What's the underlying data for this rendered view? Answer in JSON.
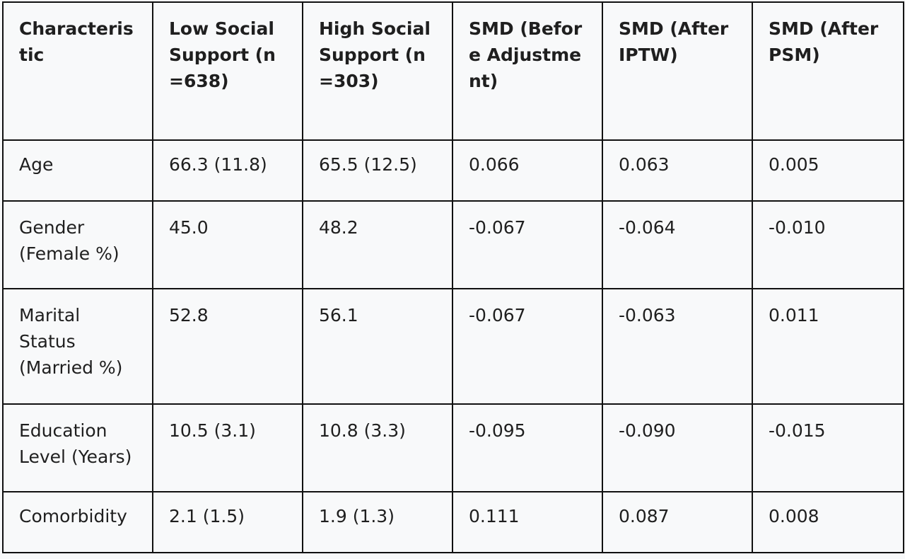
{
  "table": {
    "headers": [
      "Characteristic",
      "Low Social Support (n=638)",
      "High Social Support (n=303)",
      "SMD (Before Adjustment)",
      "SMD (After IPTW)",
      "SMD (After PSM)"
    ],
    "rows": [
      [
        "Age",
        "66.3 (11.8)",
        "65.5 (12.5)",
        "0.066",
        "0.063",
        "0.005"
      ],
      [
        "Gender (Female %)",
        "45.0",
        "48.2",
        "-0.067",
        "-0.064",
        "-0.010"
      ],
      [
        "Marital Status (Married %)",
        "52.8",
        "56.1",
        "-0.067",
        "-0.063",
        "0.011"
      ],
      [
        "Education Level (Years)",
        "10.5 (3.1)",
        "10.8 (3.3)",
        "-0.095",
        "-0.090",
        "-0.015"
      ],
      [
        "Comorbidity",
        "2.1 (1.5)",
        "1.9 (1.3)",
        "0.111",
        "0.087",
        "0.008"
      ]
    ]
  }
}
